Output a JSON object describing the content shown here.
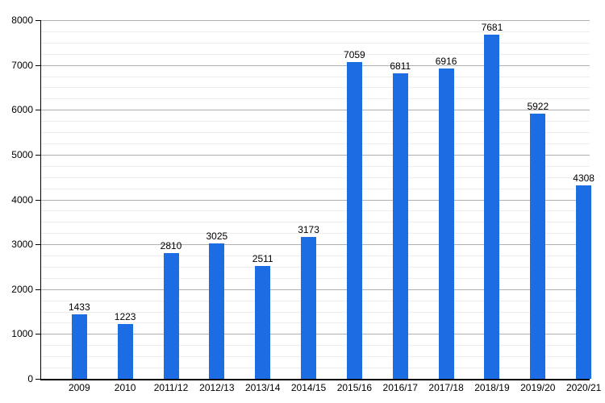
{
  "chart_data": {
    "type": "bar",
    "title": "",
    "xlabel": "",
    "ylabel": "",
    "categories": [
      "2009",
      "2010",
      "2011/12",
      "2012/13",
      "2013/14",
      "2014/15",
      "2015/16",
      "2016/17",
      "2017/18",
      "2018/19",
      "2019/20",
      "2020/21"
    ],
    "values": [
      1433,
      1223,
      2810,
      3025,
      2511,
      3173,
      7059,
      6811,
      6916,
      7681,
      5922,
      4308
    ],
    "bar_value_labels": [
      "1433",
      "1223",
      "2810",
      "3025",
      "2511",
      "3173",
      "7059",
      "6811",
      "6916",
      "7681",
      "5922",
      "4308"
    ],
    "ylim": [
      0,
      8000
    ],
    "y_major_step": 1000,
    "y_minor_step": 250,
    "y_ticks": [
      "0",
      "1000",
      "2000",
      "3000",
      "4000",
      "5000",
      "6000",
      "7000",
      "8000"
    ],
    "grid": "on",
    "legend": "none",
    "colors": {
      "bar": "#1c6ce3",
      "major_gridline": "#b0b0b0",
      "minor_gridline": "#ededed",
      "axis": "#000000",
      "text": "#000000",
      "background": "#ffffff"
    }
  }
}
